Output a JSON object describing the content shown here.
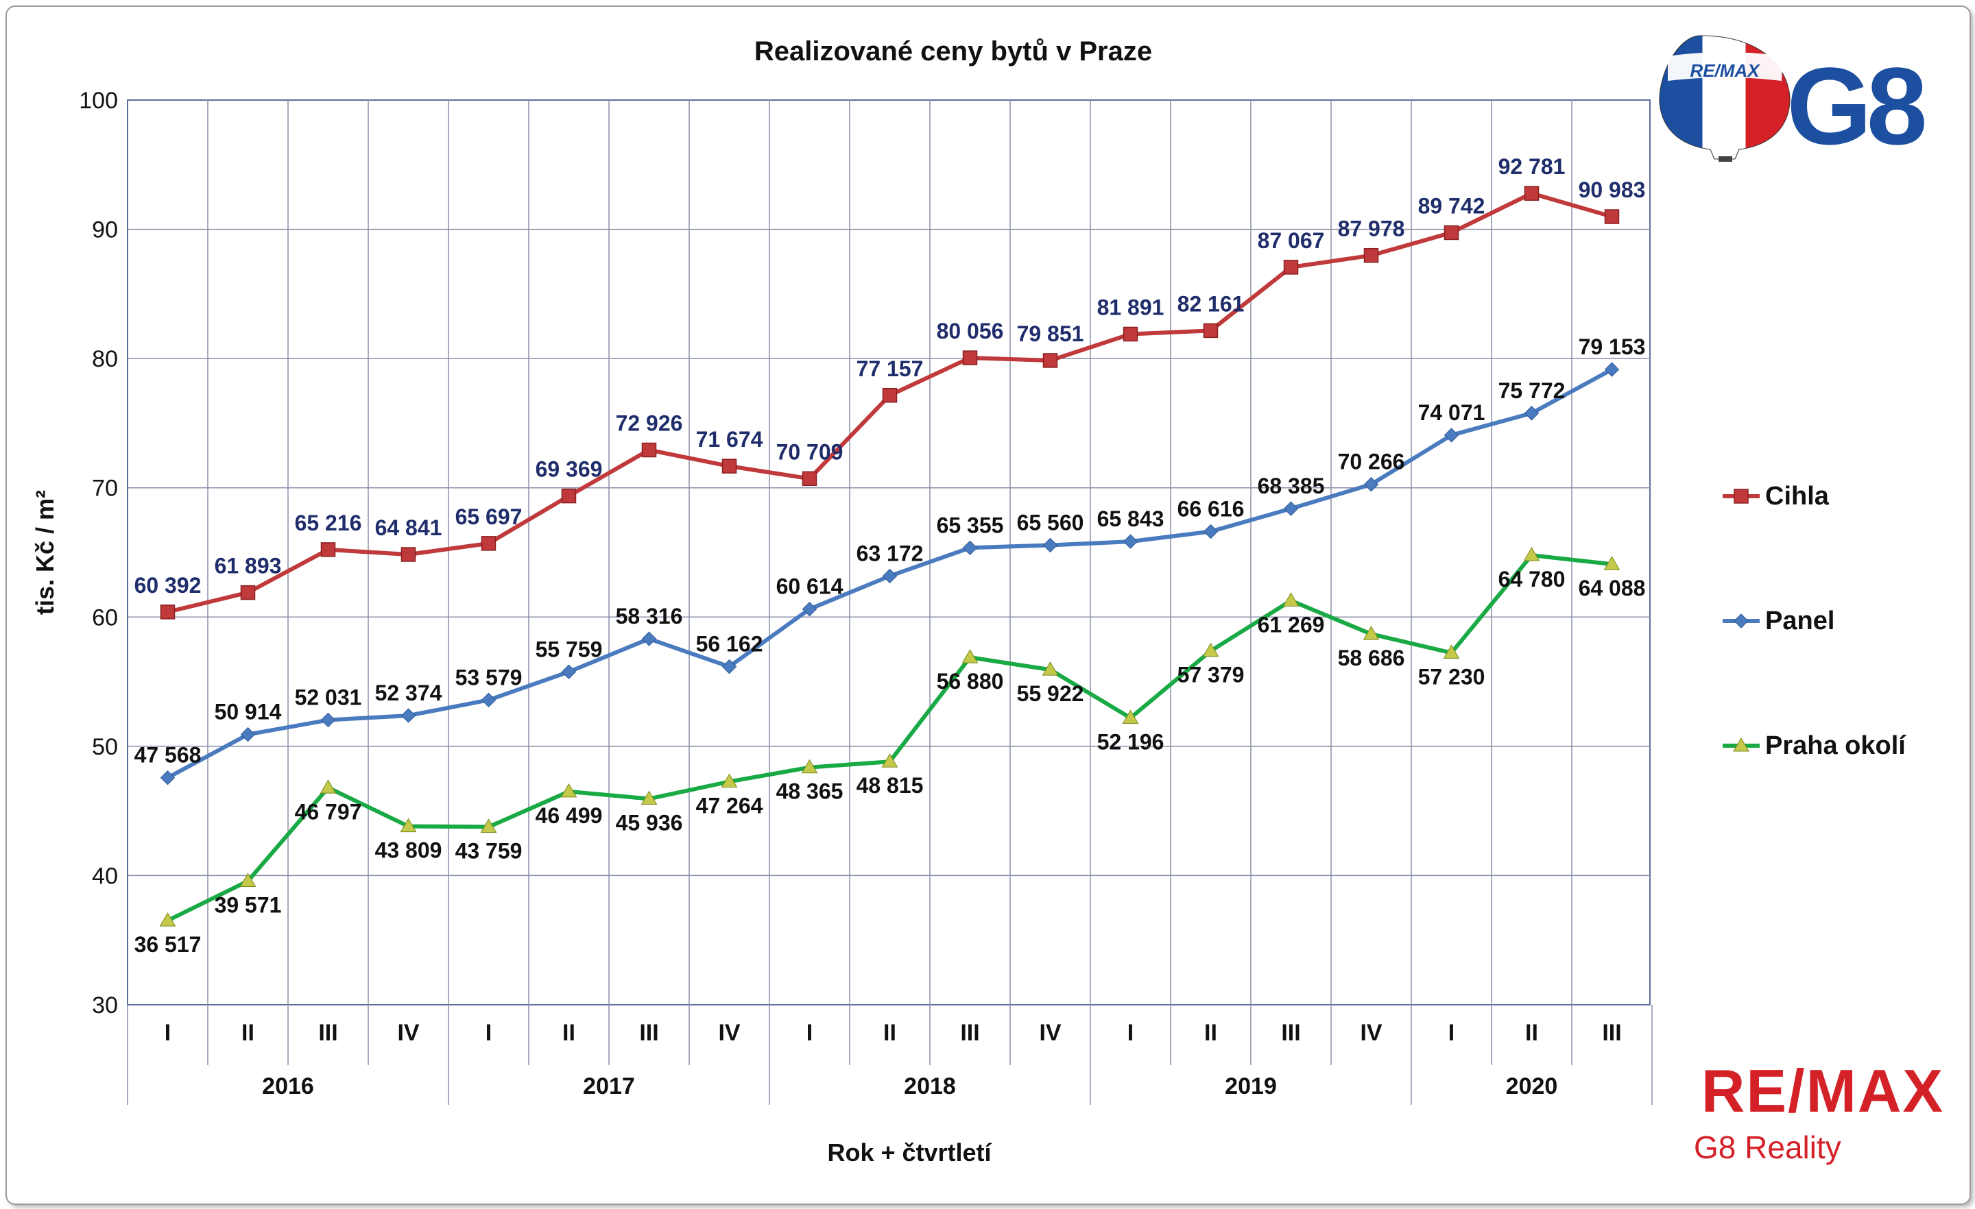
{
  "chart_data": {
    "type": "line",
    "title": "Realizované ceny bytů v Praze",
    "ylabel": "tis. Kč / m²",
    "xlabel": "Rok + čtvrtletí",
    "ylim": [
      30,
      100
    ],
    "yticks": [
      30,
      40,
      50,
      60,
      70,
      80,
      90,
      100
    ],
    "grid": true,
    "legend_position": "right",
    "quarters": [
      "I",
      "II",
      "III",
      "IV",
      "I",
      "II",
      "III",
      "IV",
      "I",
      "II",
      "III",
      "IV",
      "I",
      "II",
      "III",
      "IV",
      "I",
      "II",
      "III"
    ],
    "years": [
      {
        "label": "2016",
        "span": 4
      },
      {
        "label": "2017",
        "span": 4
      },
      {
        "label": "2018",
        "span": 4
      },
      {
        "label": "2019",
        "span": 4
      },
      {
        "label": "2020",
        "span": 3
      }
    ],
    "series": [
      {
        "name": "Cihla",
        "color": "#c0393b",
        "marker": "square",
        "label_color": "#1f2d6b",
        "values": [
          60.392,
          61.893,
          65.216,
          64.841,
          65.697,
          69.369,
          72.926,
          71.674,
          70.709,
          77.157,
          80.056,
          79.851,
          81.891,
          82.161,
          87.067,
          87.978,
          89.742,
          92.781,
          90.983
        ],
        "labels": [
          "60 392",
          "61 893",
          "65 216",
          "64 841",
          "65 697",
          "69 369",
          "72 926",
          "71 674",
          "70 709",
          "77 157",
          "80 056",
          "79 851",
          "81 891",
          "82 161",
          "87 067",
          "87 978",
          "89 742",
          "92 781",
          "90 983"
        ]
      },
      {
        "name": "Panel",
        "color": "#4a7bbf",
        "marker": "diamond",
        "label_color": "#111111",
        "values": [
          47.568,
          50.914,
          52.031,
          52.374,
          53.579,
          55.759,
          58.316,
          56.162,
          60.614,
          63.172,
          65.355,
          65.56,
          65.843,
          66.616,
          68.385,
          70.266,
          74.071,
          75.772,
          79.153
        ],
        "labels": [
          "47 568",
          "50 914",
          "52 031",
          "52 374",
          "53 579",
          "55 759",
          "58 316",
          "56 162",
          "60 614",
          "63 172",
          "65 355",
          "65 560",
          "65 843",
          "66 616",
          "68 385",
          "70 266",
          "74 071",
          "75 772",
          "79 153"
        ]
      },
      {
        "name": "Praha okolí",
        "color": "#1aaa45",
        "marker": "triangle",
        "label_color": "#111111",
        "values": [
          36.517,
          39.571,
          46.797,
          43.809,
          43.759,
          46.499,
          45.936,
          47.264,
          48.365,
          48.815,
          56.88,
          55.922,
          52.196,
          57.379,
          61.269,
          58.686,
          57.23,
          64.78,
          64.088
        ],
        "labels": [
          "36 517",
          "39 571",
          "46 797",
          "43 809",
          "43 759",
          "46 499",
          "45 936",
          "47 264",
          "48 365",
          "48 815",
          "56 880",
          "55 922",
          "52 196",
          "57 379",
          "61 269",
          "58 686",
          "57 230",
          "64 780",
          "64 088"
        ]
      }
    ]
  },
  "logos": {
    "balloon_text": "RE/MAX",
    "g8_text": "G8",
    "brand_text": "RE/MAX",
    "brand_subtitle": "G8 Reality",
    "brand_color": "#d42027",
    "g8_color": "#1d4fa0"
  }
}
